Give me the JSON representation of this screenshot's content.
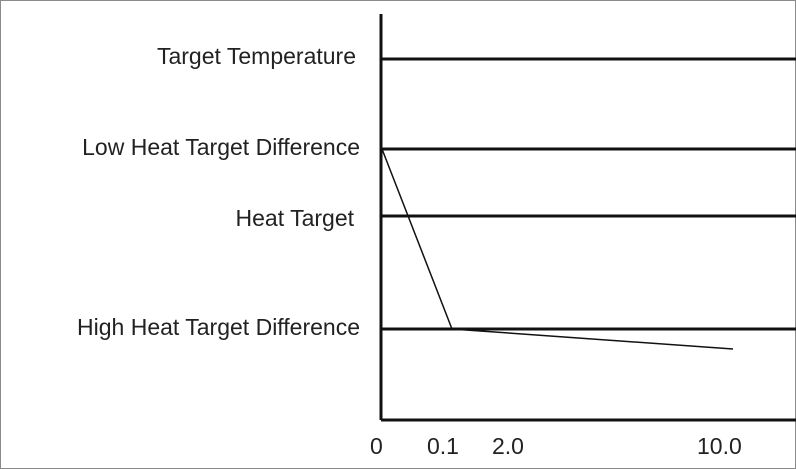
{
  "levels": {
    "target_temperature": "Target Temperature",
    "low_heat_target_difference": "Low Heat Target Difference",
    "heat_target": "Heat Target",
    "high_heat_target_difference": "High Heat Target Difference"
  },
  "x_ticks": [
    "0",
    "0.1",
    "2.0",
    "10.0"
  ],
  "colors": {
    "line": "#111111",
    "text": "#222222",
    "frame": "#8a8a8a"
  }
}
